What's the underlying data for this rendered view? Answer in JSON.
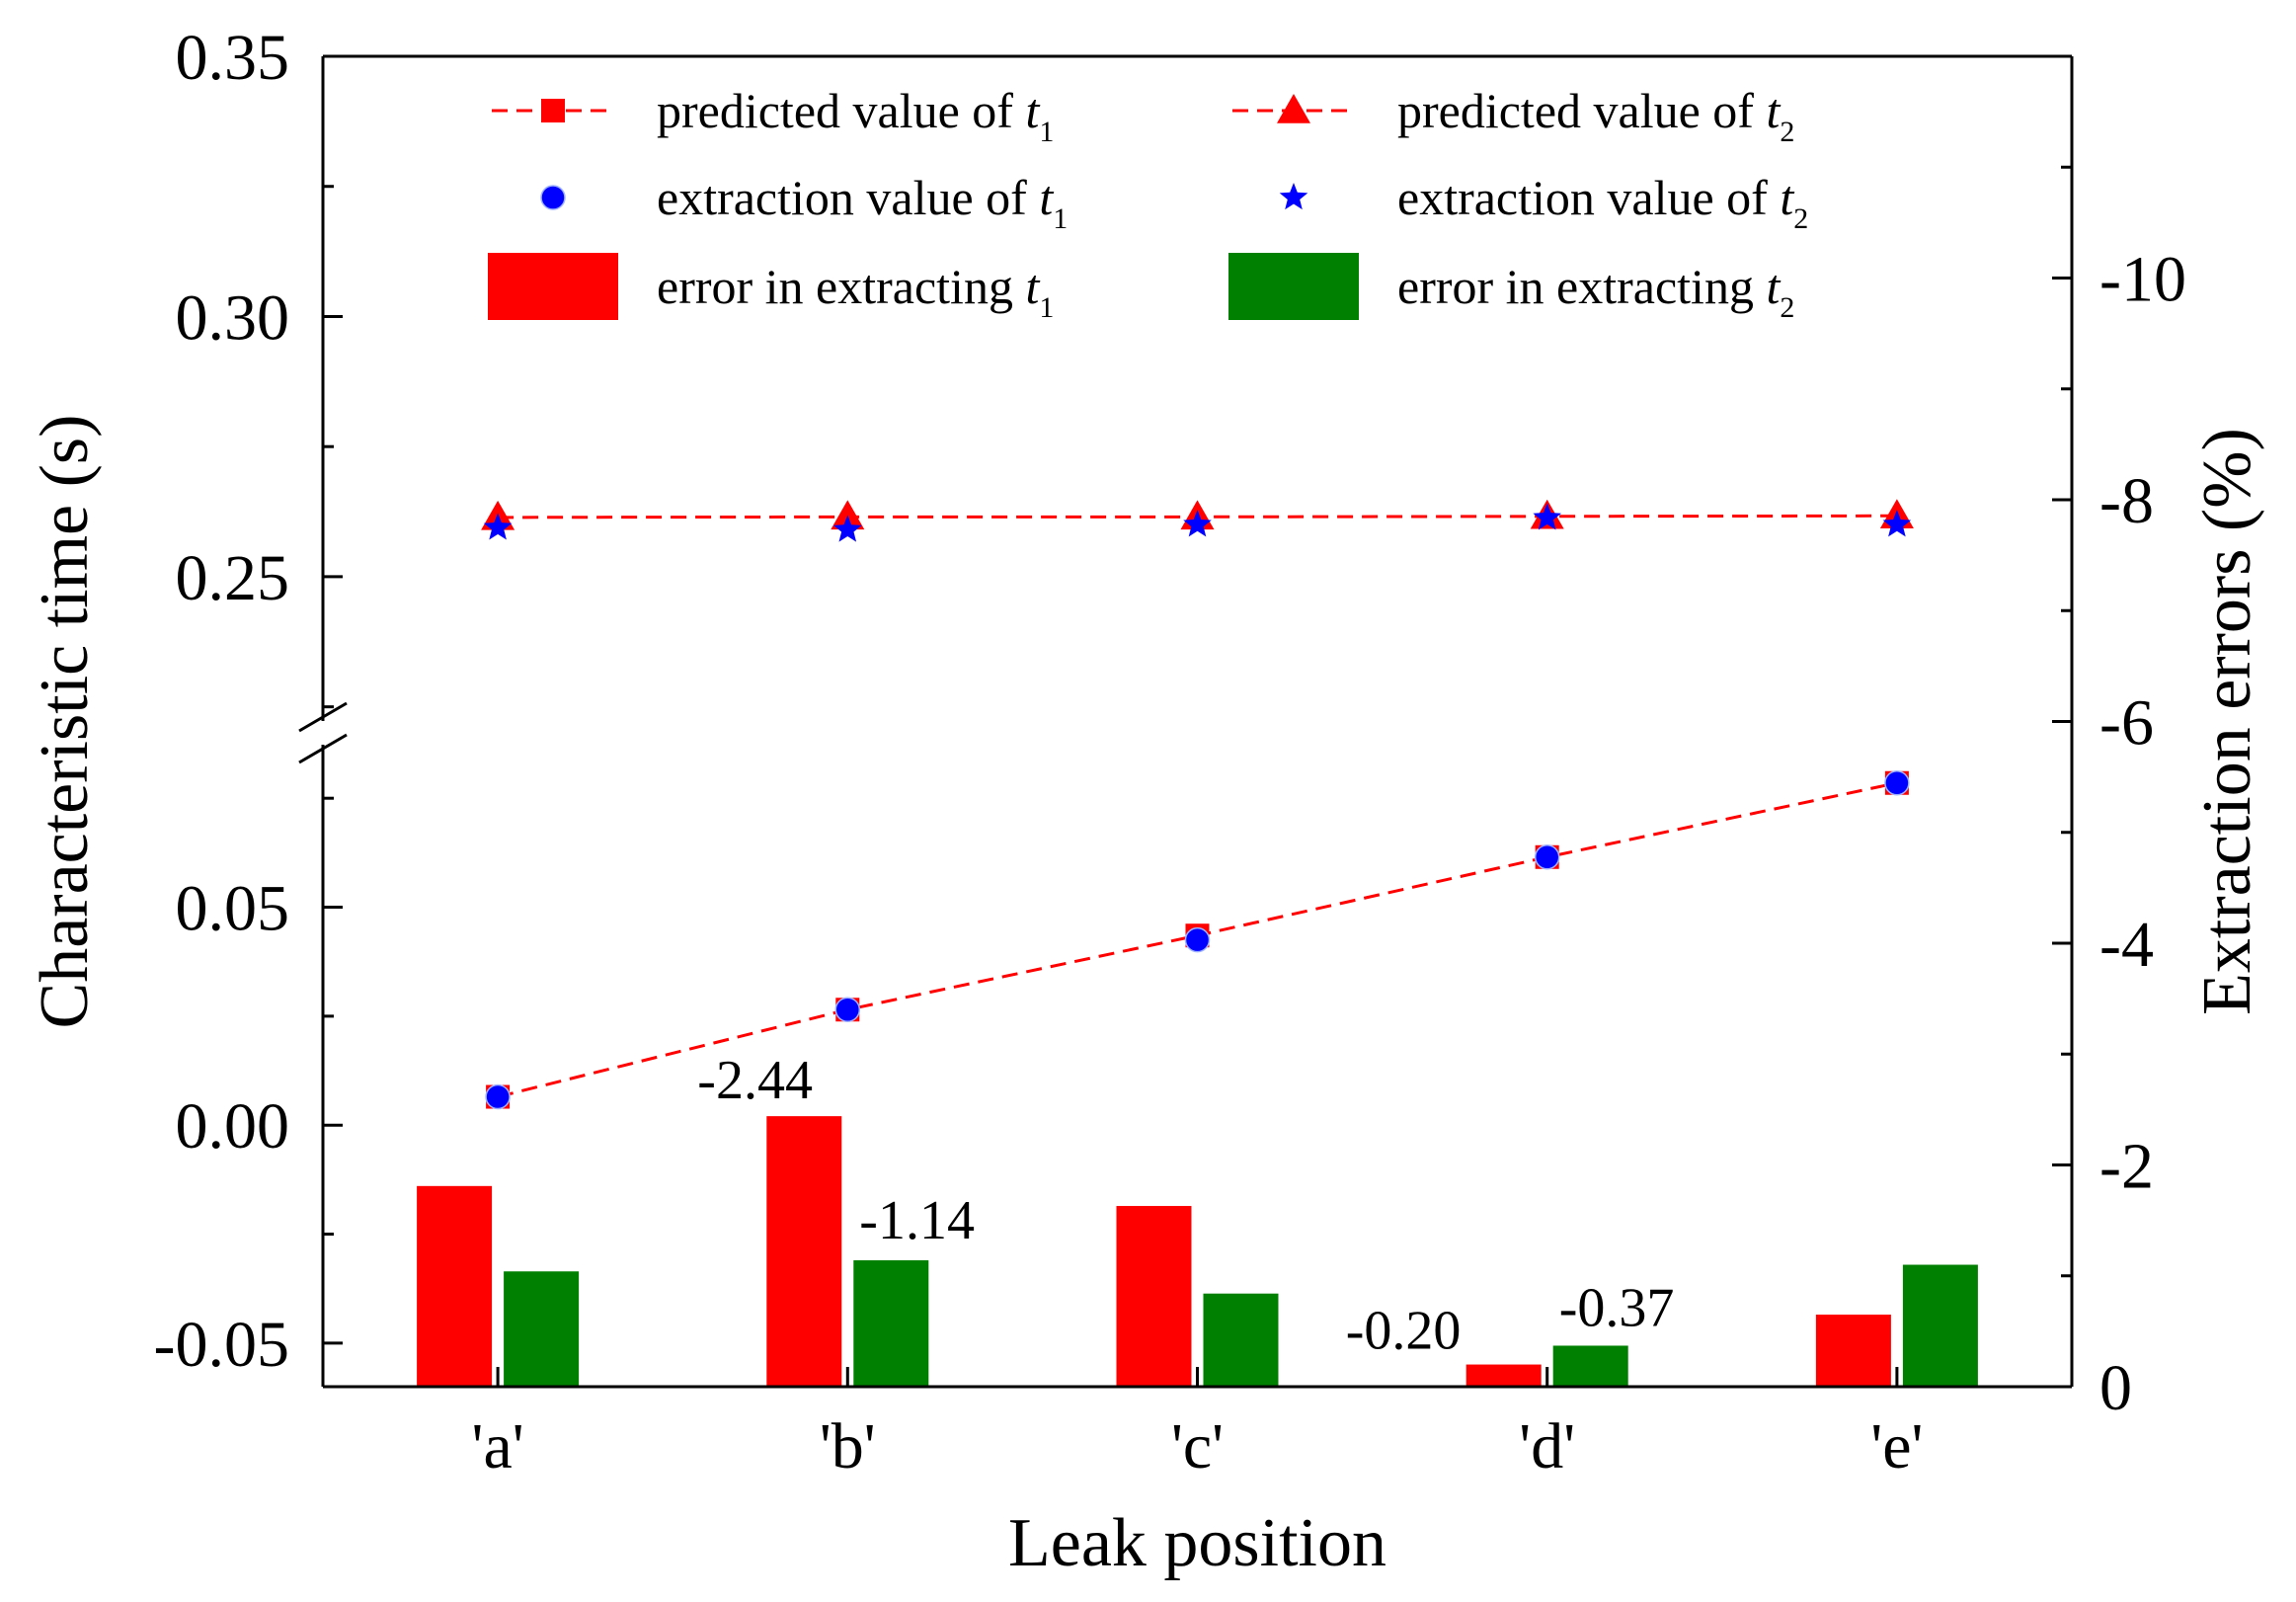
{
  "chart_data": {
    "type": "bar+line+scatter",
    "categories": [
      "'a'",
      "'b'",
      "'c'",
      "'d'",
      "'e'"
    ],
    "xlabel": "Leak position",
    "ylabel_left": "Characteristic time (s)",
    "ylabel_right": "Extraction errors (%)",
    "left_axis": {
      "broken": true,
      "lower_range": [
        -0.06,
        0.09
      ],
      "upper_range": [
        0.22,
        0.35
      ],
      "ticks": [
        "-0.05",
        "0.00",
        "0.05",
        "0.25",
        "0.30",
        "0.35"
      ]
    },
    "right_axis": {
      "range": [
        0,
        -12
      ],
      "reversed": true,
      "ticks": [
        "0",
        "-2",
        "-4",
        "-6",
        "-8",
        "-10"
      ]
    },
    "series": [
      {
        "name": "predicted value of t1",
        "kind": "line-square",
        "axis": "left",
        "values": [
          0.0065,
          0.0265,
          0.0435,
          0.0615,
          0.0785
        ]
      },
      {
        "name": "predicted value of t2",
        "kind": "line-triangle",
        "axis": "left",
        "values": [
          0.2614,
          0.2615,
          0.2615,
          0.2616,
          0.2617
        ]
      },
      {
        "name": "extraction value of t1",
        "kind": "scatter-circle",
        "axis": "left",
        "values": [
          0.0065,
          0.0265,
          0.0425,
          0.0615,
          0.0785
        ]
      },
      {
        "name": "extraction value of t2",
        "kind": "scatter-star",
        "axis": "left",
        "values": [
          0.2594,
          0.259,
          0.26,
          0.2613,
          0.26
        ]
      },
      {
        "name": "error in extracting t1",
        "kind": "bar",
        "axis": "right",
        "values": [
          -1.81,
          -2.44,
          -1.63,
          -0.2,
          -0.65
        ]
      },
      {
        "name": "error in extracting t2",
        "kind": "bar",
        "axis": "right",
        "values": [
          -1.04,
          -1.14,
          -0.84,
          -0.37,
          -1.1
        ]
      }
    ],
    "bar_labels": [
      {
        "text": "-2.44",
        "series": 4,
        "index": 1
      },
      {
        "text": "-1.14",
        "series": 5,
        "index": 1
      },
      {
        "text": "-0.20",
        "series": 4,
        "index": 3
      },
      {
        "text": "-0.37",
        "series": 5,
        "index": 3
      }
    ],
    "legend": [
      {
        "prefix": "predicted value of ",
        "var": "t",
        "sub": "1"
      },
      {
        "prefix": "predicted value of ",
        "var": "t",
        "sub": "2"
      },
      {
        "prefix": "extraction value of ",
        "var": "t",
        "sub": "1"
      },
      {
        "prefix": "extraction value of ",
        "var": "t",
        "sub": "2"
      },
      {
        "prefix": "error in extracting ",
        "var": "t",
        "sub": "1"
      },
      {
        "prefix": "error in extracting ",
        "var": "t",
        "sub": "2"
      }
    ],
    "legend_position": "top",
    "colors": {
      "t1_error_bar": "#ff0000",
      "t2_error_bar": "#008000",
      "prediction_line": "#ff0000",
      "extraction_circle": "#0000ff",
      "extraction_star": "#0000ff"
    }
  }
}
